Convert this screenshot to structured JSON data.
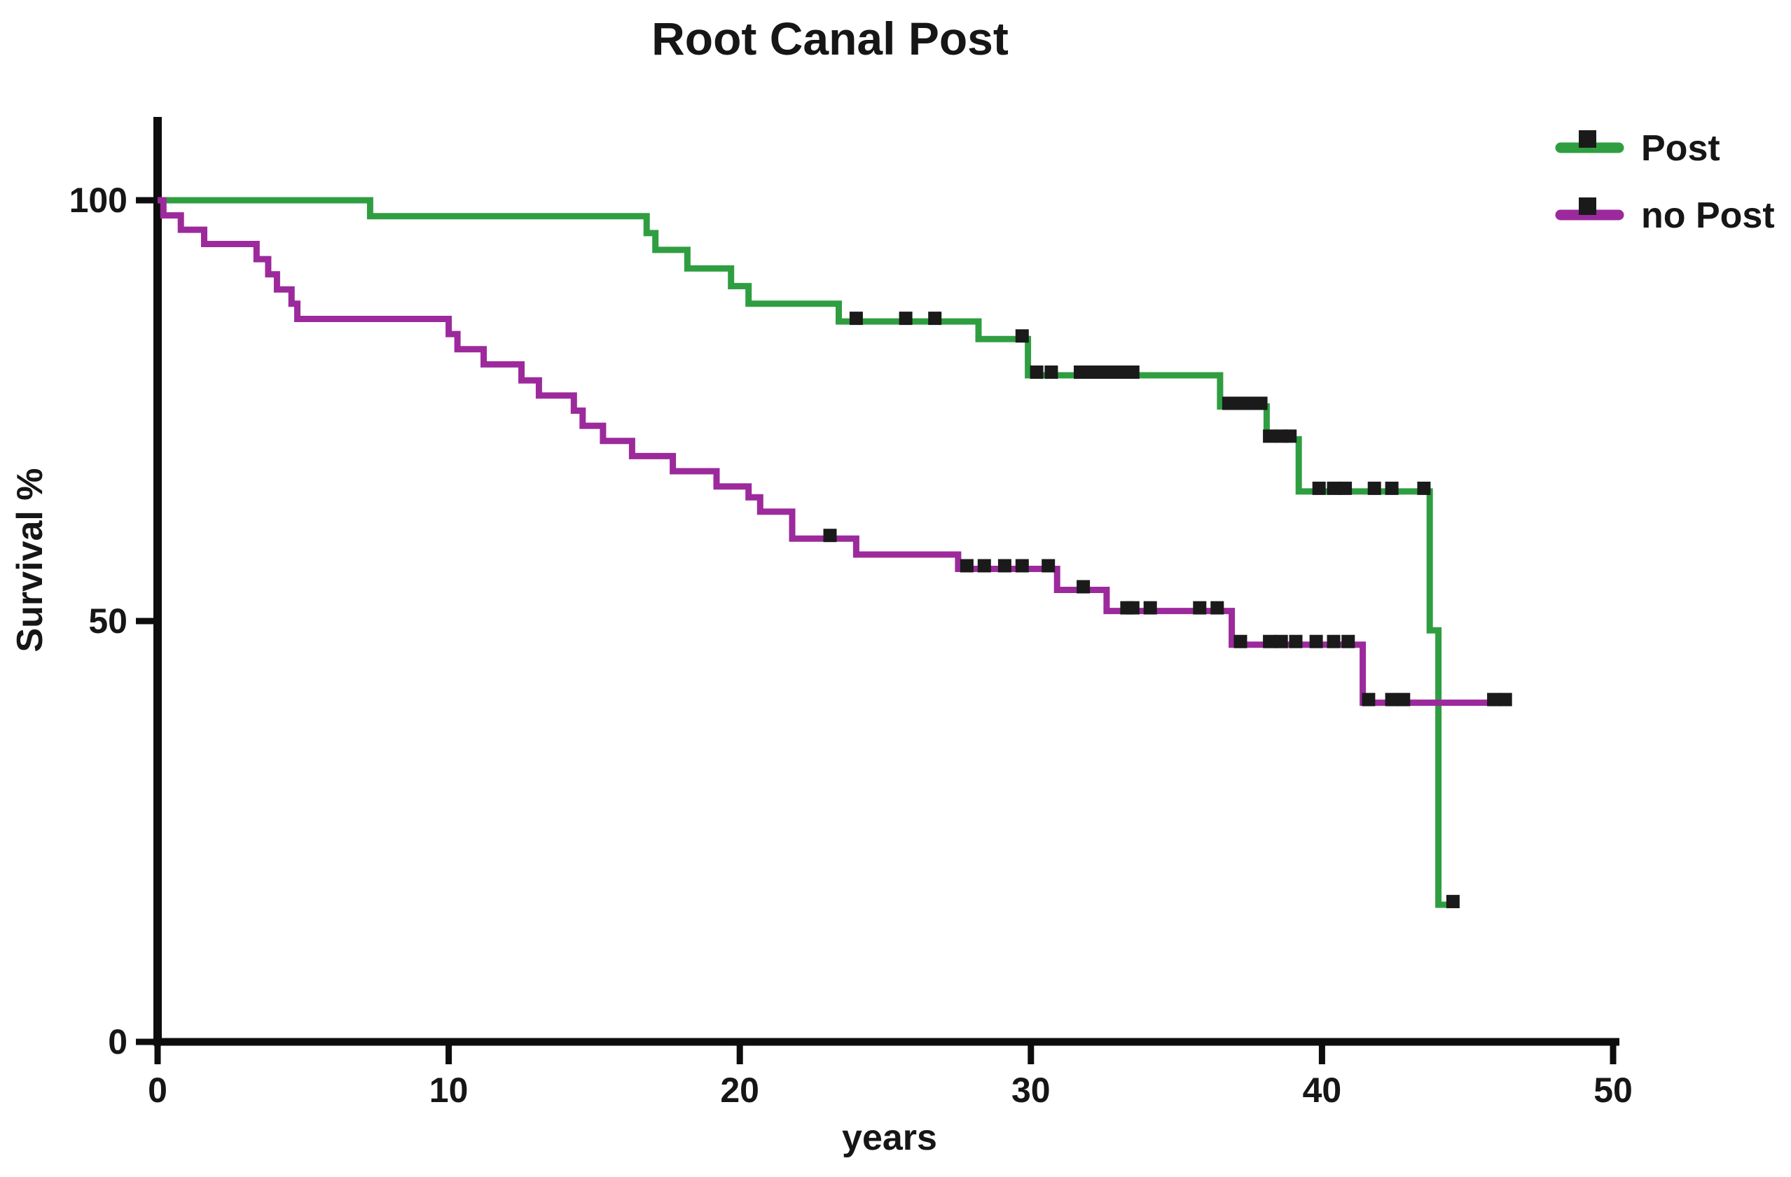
{
  "title": "Root Canal Post",
  "axes": {
    "x": {
      "label": "years",
      "tick_labels": [
        "0",
        "10",
        "20",
        "30",
        "40",
        "50"
      ],
      "min": 0,
      "max": 50
    },
    "y": {
      "label": "Survival %",
      "tick_labels": [
        "100",
        "50",
        "0"
      ],
      "min": 0,
      "max": 100
    }
  },
  "legend": {
    "items": [
      {
        "label": "Post",
        "color": "#2f9e41"
      },
      {
        "label": "no Post",
        "color": "#9c2a9c"
      }
    ]
  },
  "chart_data": {
    "type": "line",
    "subtype": "kaplan_meier_survival_step",
    "title": "Root Canal Post",
    "xlabel": "years",
    "ylabel": "Survival %",
    "xlim": [
      0,
      50
    ],
    "ylim": [
      0,
      100
    ],
    "grid": false,
    "legend_position": "top-right",
    "censor_color": "#1a1a1a",
    "series": [
      {
        "id": "post",
        "name": "Post",
        "color": "#2f9e41",
        "steps": [
          [
            0,
            100
          ],
          [
            7.3,
            98.1
          ],
          [
            16.8,
            96.1
          ],
          [
            17.1,
            94.1
          ],
          [
            18.2,
            91.9
          ],
          [
            19.7,
            89.8
          ],
          [
            20.3,
            87.7
          ],
          [
            23.4,
            85.6
          ],
          [
            28.2,
            83.5
          ],
          [
            29.9,
            79.2
          ],
          [
            36.5,
            75.5
          ],
          [
            38.1,
            71.6
          ],
          [
            39.2,
            65.4
          ],
          [
            43.7,
            48.9
          ],
          [
            44.0,
            16.3
          ]
        ],
        "end_x": 44.6,
        "censor_marks": [
          [
            24.0,
            85.6
          ],
          [
            25.7,
            85.6
          ],
          [
            26.7,
            85.6
          ],
          [
            29.7,
            83.5
          ],
          [
            30.2,
            79.2
          ],
          [
            30.7,
            79.2
          ],
          [
            31.7,
            79.2
          ],
          [
            31.9,
            79.2
          ],
          [
            32.1,
            79.2
          ],
          [
            32.4,
            79.2
          ],
          [
            32.8,
            79.2
          ],
          [
            33.2,
            79.2
          ],
          [
            33.5,
            79.2
          ],
          [
            36.8,
            75.5
          ],
          [
            37.0,
            75.5
          ],
          [
            37.3,
            75.5
          ],
          [
            37.5,
            75.5
          ],
          [
            37.9,
            75.5
          ],
          [
            38.2,
            71.6
          ],
          [
            38.6,
            71.6
          ],
          [
            38.9,
            71.6
          ],
          [
            39.9,
            65.4
          ],
          [
            40.4,
            65.4
          ],
          [
            40.8,
            65.4
          ],
          [
            41.8,
            65.4
          ],
          [
            42.4,
            65.4
          ],
          [
            43.5,
            65.4
          ],
          [
            44.5,
            16.3
          ]
        ]
      },
      {
        "id": "no-post",
        "name": "no Post",
        "color": "#9c2a9c",
        "steps": [
          [
            0,
            100
          ],
          [
            0.2,
            98.2
          ],
          [
            0.8,
            96.5
          ],
          [
            1.6,
            94.8
          ],
          [
            3.4,
            93.0
          ],
          [
            3.8,
            91.2
          ],
          [
            4.1,
            89.4
          ],
          [
            4.6,
            87.7
          ],
          [
            4.8,
            85.9
          ],
          [
            10.0,
            84.1
          ],
          [
            10.3,
            82.3
          ],
          [
            11.2,
            80.5
          ],
          [
            12.5,
            78.6
          ],
          [
            13.1,
            76.8
          ],
          [
            14.3,
            75.0
          ],
          [
            14.6,
            73.2
          ],
          [
            15.3,
            71.4
          ],
          [
            16.3,
            69.6
          ],
          [
            17.7,
            67.8
          ],
          [
            19.2,
            66.0
          ],
          [
            20.3,
            64.7
          ],
          [
            20.7,
            63.0
          ],
          [
            21.8,
            59.8
          ],
          [
            24.0,
            57.9
          ],
          [
            27.5,
            56.2
          ],
          [
            30.9,
            53.7
          ],
          [
            32.6,
            51.2
          ],
          [
            36.9,
            47.2
          ],
          [
            41.4,
            40.3
          ]
        ],
        "end_x": 46.4,
        "censor_marks": [
          [
            23.1,
            59.8
          ],
          [
            27.8,
            56.2
          ],
          [
            28.4,
            56.2
          ],
          [
            29.1,
            56.2
          ],
          [
            29.7,
            56.2
          ],
          [
            30.6,
            56.2
          ],
          [
            31.8,
            53.7
          ],
          [
            33.3,
            51.2
          ],
          [
            33.5,
            51.2
          ],
          [
            34.1,
            51.2
          ],
          [
            35.8,
            51.2
          ],
          [
            36.4,
            51.2
          ],
          [
            37.2,
            47.2
          ],
          [
            38.2,
            47.2
          ],
          [
            38.6,
            47.2
          ],
          [
            39.1,
            47.2
          ],
          [
            39.8,
            47.2
          ],
          [
            40.4,
            47.2
          ],
          [
            40.9,
            47.2
          ],
          [
            41.6,
            40.3
          ],
          [
            42.4,
            40.3
          ],
          [
            42.8,
            40.3
          ],
          [
            45.9,
            40.3
          ],
          [
            46.3,
            40.3
          ]
        ]
      }
    ]
  }
}
